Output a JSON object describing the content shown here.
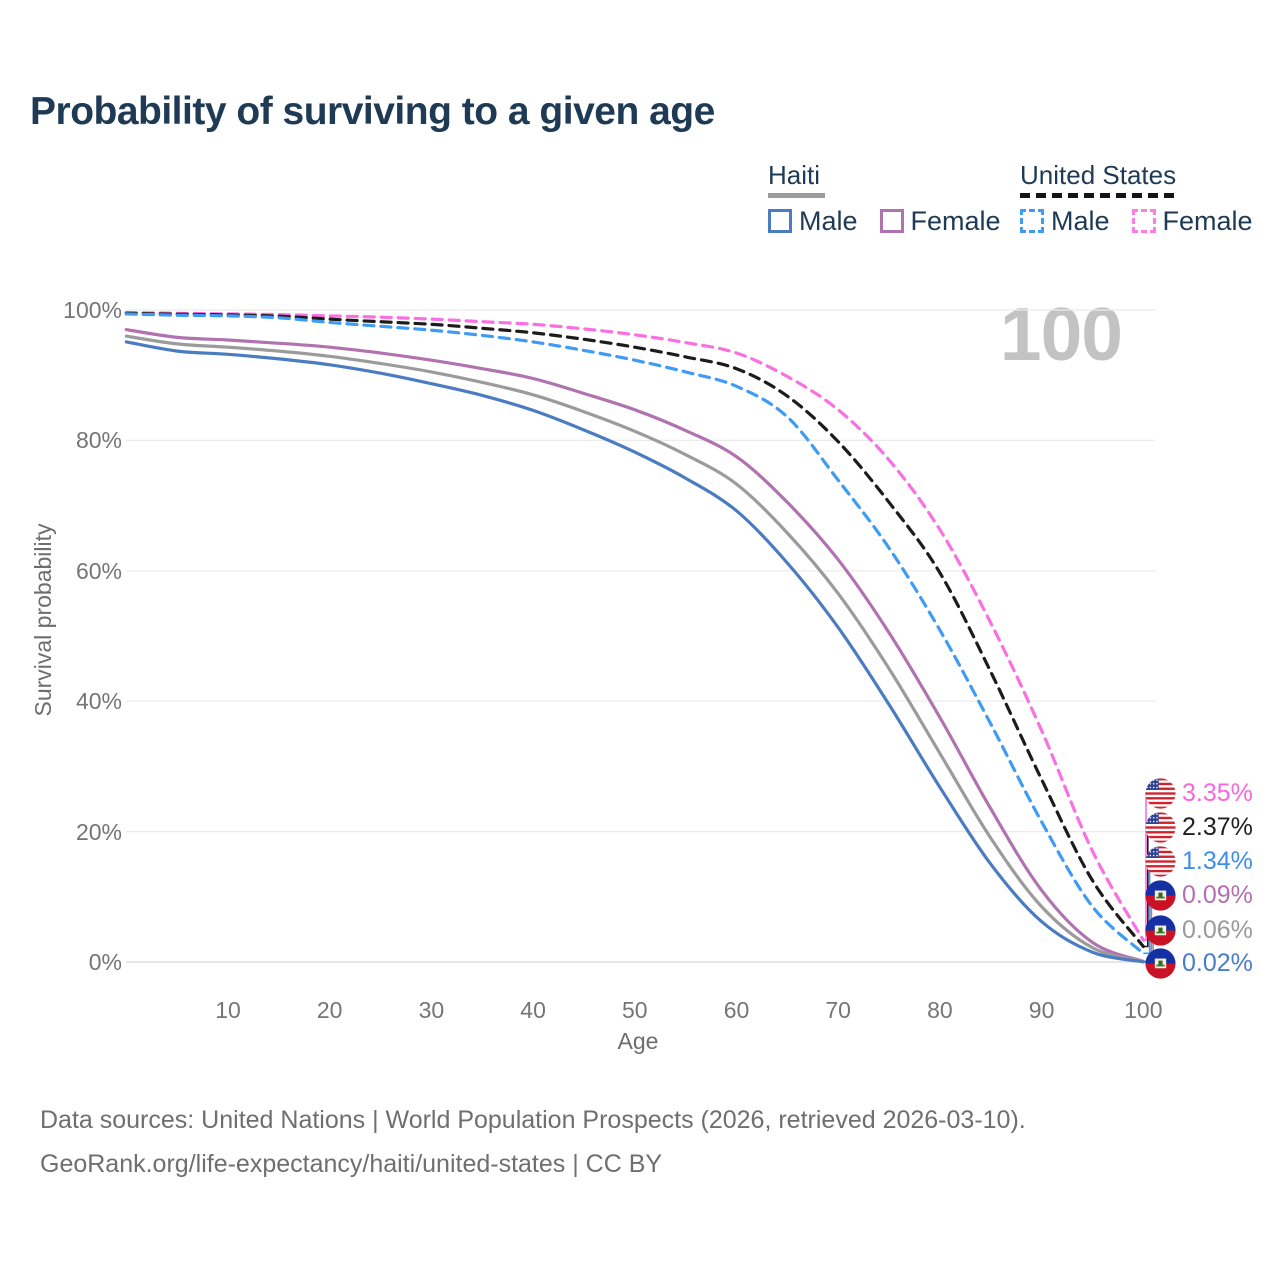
{
  "title": "Probability of surviving to a given age",
  "watermark": "100",
  "legend": {
    "groups": [
      {
        "country": "Haiti",
        "underline_style": "solid",
        "underline_color": "#9b9b9b",
        "items": [
          {
            "label": "Male",
            "color": "#4b7cc2",
            "dashed": false
          },
          {
            "label": "Female",
            "color": "#b172b0",
            "dashed": false
          }
        ]
      },
      {
        "country": "United States",
        "underline_style": "dashed",
        "underline_color": "#141414",
        "items": [
          {
            "label": "Male",
            "color": "#3f9bf3",
            "dashed": true
          },
          {
            "label": "Female",
            "color": "#fb7ce4",
            "dashed": true
          }
        ]
      }
    ]
  },
  "chart_data": {
    "type": "line",
    "title": "Probability of surviving to a given age",
    "xlabel": "Age",
    "ylabel": "Survival probability",
    "xlim": [
      0,
      100
    ],
    "ylim": [
      0,
      100
    ],
    "grid": "horizontal",
    "x_ticks": [
      "10",
      "20",
      "30",
      "40",
      "50",
      "60",
      "70",
      "80",
      "90",
      "100"
    ],
    "x_tick_values": [
      10,
      20,
      30,
      40,
      50,
      60,
      70,
      80,
      90,
      100
    ],
    "y_ticks": [
      "100%",
      "80%",
      "60%",
      "40%",
      "20%",
      "0%"
    ],
    "y_tick_values": [
      100,
      80,
      60,
      40,
      20,
      0
    ],
    "x": [
      0,
      5,
      10,
      15,
      20,
      25,
      30,
      35,
      40,
      45,
      50,
      55,
      60,
      65,
      70,
      75,
      80,
      85,
      90,
      95,
      100
    ],
    "series": [
      {
        "name": "United States Female",
        "color": "#f970e1",
        "dashed": true,
        "values": [
          99.6,
          99.5,
          99.4,
          99.3,
          99.1,
          98.9,
          98.6,
          98.2,
          97.8,
          97.1,
          96.2,
          95.0,
          93.4,
          89.8,
          84.7,
          77.0,
          66.3,
          52.0,
          35.5,
          17.0,
          3.35
        ],
        "end_label": "3.35%"
      },
      {
        "name": "United States Both sexes",
        "color": "#1c1c1c",
        "dashed": true,
        "values": [
          99.5,
          99.35,
          99.25,
          99.05,
          98.6,
          98.2,
          97.8,
          97.2,
          96.5,
          95.5,
          94.3,
          92.8,
          91.0,
          86.8,
          79.8,
          70.5,
          59.7,
          44.5,
          28.0,
          12.5,
          2.37
        ],
        "end_label": "2.37%"
      },
      {
        "name": "United States Male",
        "color": "#3f9bf3",
        "dashed": true,
        "values": [
          99.4,
          99.2,
          99.1,
          98.8,
          98.1,
          97.5,
          96.9,
          96.1,
          95.1,
          93.8,
          92.3,
          90.5,
          88.3,
          83.6,
          73.9,
          63.5,
          50.9,
          36.5,
          21.5,
          8.5,
          1.34
        ],
        "end_label": "1.34%"
      },
      {
        "name": "Haiti Female",
        "color": "#b172b0",
        "dashed": false,
        "values": [
          97.0,
          95.8,
          95.4,
          94.9,
          94.3,
          93.4,
          92.3,
          91.0,
          89.5,
          87.2,
          84.7,
          81.5,
          77.5,
          70.5,
          61.7,
          50.5,
          37.5,
          23.5,
          11.0,
          3.0,
          0.09
        ],
        "end_label": "0.09%"
      },
      {
        "name": "Haiti Both sexes",
        "color": "#9b9b9b",
        "dashed": false,
        "values": [
          96.0,
          94.8,
          94.3,
          93.7,
          92.9,
          91.8,
          90.5,
          88.9,
          87.0,
          84.4,
          81.4,
          77.8,
          73.3,
          65.8,
          56.5,
          45.0,
          32.0,
          19.0,
          8.5,
          2.2,
          0.06
        ],
        "end_label": "0.06%"
      },
      {
        "name": "Haiti Male",
        "color": "#4b7cc2",
        "dashed": false,
        "values": [
          95.1,
          93.7,
          93.2,
          92.5,
          91.6,
          90.3,
          88.7,
          86.9,
          84.6,
          81.6,
          78.2,
          74.2,
          69.2,
          61.2,
          51.3,
          39.5,
          26.8,
          15.0,
          6.2,
          1.5,
          0.02
        ],
        "end_label": "0.02%"
      }
    ]
  },
  "end_labels": [
    {
      "country": "United States",
      "flag": "us",
      "value": "3.35%",
      "color": "#f767df"
    },
    {
      "country": "United States",
      "flag": "us",
      "value": "2.37%",
      "color": "#1f1f1f"
    },
    {
      "country": "United States",
      "flag": "us",
      "value": "1.34%",
      "color": "#3c8ef0"
    },
    {
      "country": "Haiti",
      "flag": "haiti",
      "value": "0.09%",
      "color": "#b46fb2"
    },
    {
      "country": "Haiti",
      "flag": "haiti",
      "value": "0.06%",
      "color": "#9a9a9a"
    },
    {
      "country": "Haiti",
      "flag": "haiti",
      "value": "0.02%",
      "color": "#4b7cc9"
    }
  ],
  "footer": {
    "line1": "Data sources: United Nations | World Population Prospects (2026, retrieved 2026-03-10).",
    "line2": "GeoRank.org/life-expectancy/haiti/united-states | CC BY"
  }
}
